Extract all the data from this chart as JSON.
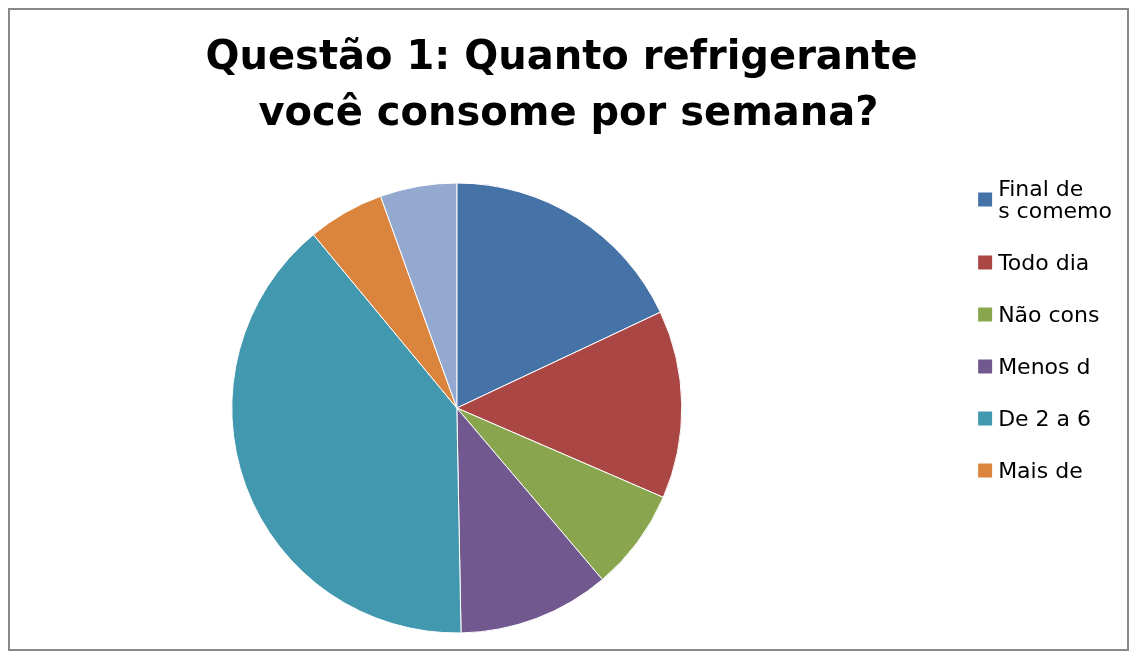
{
  "chart_data": {
    "type": "pie",
    "title": "Questão 1: Quanto refrigerante você consome por semana?",
    "categories": [
      "Final de s comemo",
      "Todo dia",
      "Não cons",
      "Menos d",
      "De 2 a 6",
      "Mais de",
      null
    ],
    "values": [
      18,
      13.5,
      7.3,
      10.9,
      39.3,
      5.5,
      5.5
    ],
    "colors": [
      "#4572a7",
      "#aa4643",
      "#89a54e",
      "#71588f",
      "#4198af",
      "#db843d",
      "#93a9cf"
    ],
    "legend": "right"
  }
}
